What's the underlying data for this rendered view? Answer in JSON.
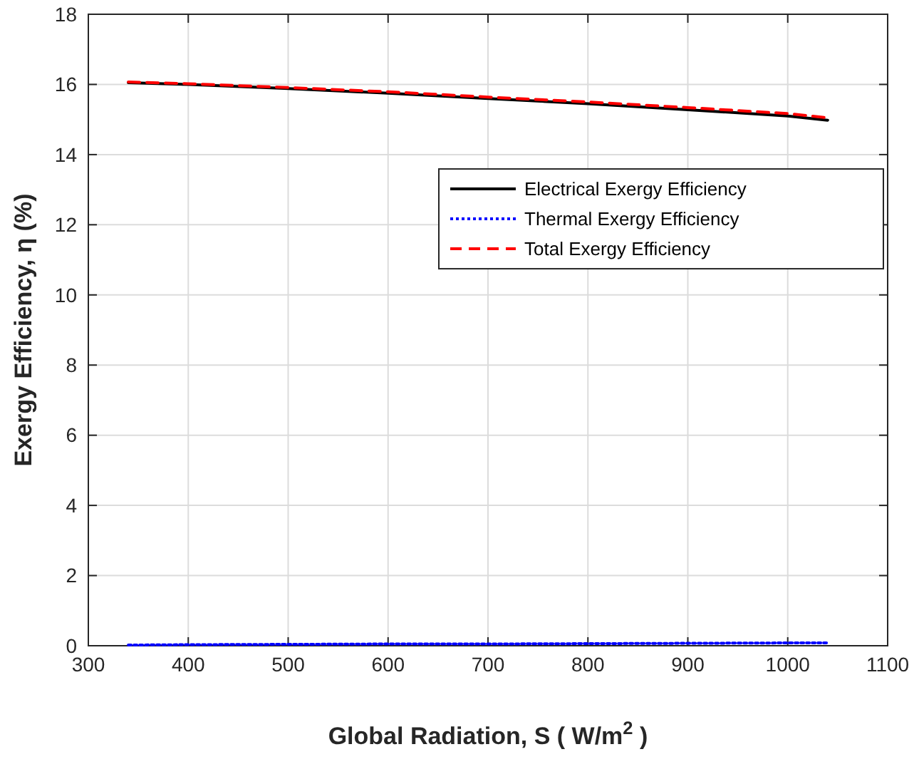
{
  "chart_data": {
    "type": "line",
    "xlabel": "Global Radiation, S ( W/m$^{2}$ )",
    "ylabel": "Exergy Efficiency, η (%)",
    "x": [
      340,
      400,
      500,
      600,
      700,
      800,
      900,
      1000,
      1040
    ],
    "series": [
      {
        "name": "Electrical Exergy Efficiency",
        "color": "#000000",
        "line_style": "solid",
        "values": [
          16.05,
          16.0,
          15.88,
          15.75,
          15.6,
          15.45,
          15.28,
          15.1,
          14.98
        ]
      },
      {
        "name": "Thermal Exergy Efficiency",
        "color": "#0000ff",
        "line_style": "dotted",
        "values": [
          0.02,
          0.03,
          0.04,
          0.05,
          0.05,
          0.06,
          0.07,
          0.08,
          0.08
        ]
      },
      {
        "name": "Total Exergy Efficiency",
        "color": "#ff0000",
        "line_style": "dashed",
        "values": [
          16.07,
          16.02,
          15.91,
          15.79,
          15.64,
          15.5,
          15.34,
          15.17,
          15.05
        ]
      }
    ],
    "xlim": [
      300,
      1100
    ],
    "xticks": [
      300,
      400,
      500,
      600,
      700,
      800,
      900,
      1000,
      1100
    ],
    "ylim": [
      0,
      18
    ],
    "yticks": [
      0,
      2,
      4,
      6,
      8,
      10,
      12,
      14,
      16,
      18
    ],
    "grid": true,
    "legend": "right",
    "marker": "none"
  }
}
